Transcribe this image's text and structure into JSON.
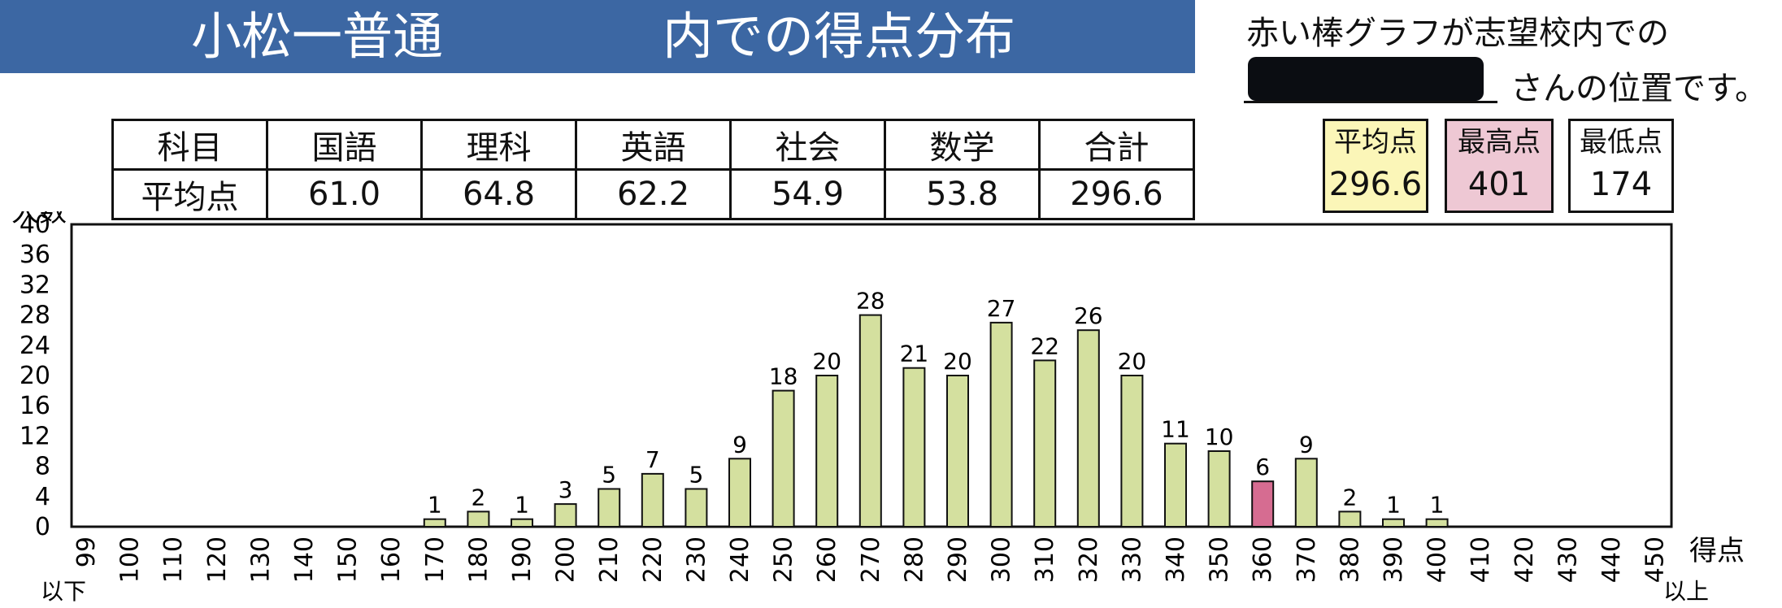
{
  "title": {
    "left": "小松一普通",
    "right": "内での得点分布"
  },
  "note": {
    "line1": "赤い棒グラフが志望校内での",
    "line2": "さんの位置です。"
  },
  "score_table": {
    "header_label": "科目",
    "row_label": "平均点",
    "subjects": [
      "国語",
      "理科",
      "英語",
      "社会",
      "数学",
      "合計"
    ],
    "averages": [
      "61.0",
      "64.8",
      "62.2",
      "54.9",
      "53.8",
      "296.6"
    ]
  },
  "stats": {
    "average": {
      "label": "平均点",
      "value": "296.6"
    },
    "max": {
      "label": "最高点",
      "value": "401"
    },
    "min": {
      "label": "最低点",
      "value": "174"
    }
  },
  "colors": {
    "banner": "#3c67a3",
    "bar": "#d4e09f",
    "highlight_bar": "#d66c91",
    "avg_box": "#fbf6b8",
    "max_box": "#eec8d4"
  },
  "chart_data": {
    "type": "bar",
    "ylabel": "人数",
    "xlabel": "得点",
    "ylim": [
      0,
      40
    ],
    "yticks": [
      0,
      4,
      8,
      12,
      16,
      20,
      24,
      28,
      32,
      36,
      40
    ],
    "categories": [
      "99",
      "100",
      "110",
      "120",
      "130",
      "140",
      "150",
      "160",
      "170",
      "180",
      "190",
      "200",
      "210",
      "220",
      "230",
      "240",
      "250",
      "260",
      "270",
      "280",
      "290",
      "300",
      "310",
      "320",
      "330",
      "340",
      "350",
      "360",
      "370",
      "380",
      "390",
      "400",
      "410",
      "420",
      "430",
      "440",
      "450"
    ],
    "values": [
      0,
      0,
      0,
      0,
      0,
      0,
      0,
      0,
      1,
      2,
      1,
      3,
      5,
      7,
      5,
      9,
      18,
      20,
      28,
      21,
      20,
      27,
      22,
      26,
      20,
      11,
      10,
      6,
      9,
      2,
      1,
      1,
      0,
      0,
      0,
      0,
      0
    ],
    "highlight_category": "360",
    "first_category_note": "以下",
    "last_category_note": "以上",
    "grid": false
  }
}
